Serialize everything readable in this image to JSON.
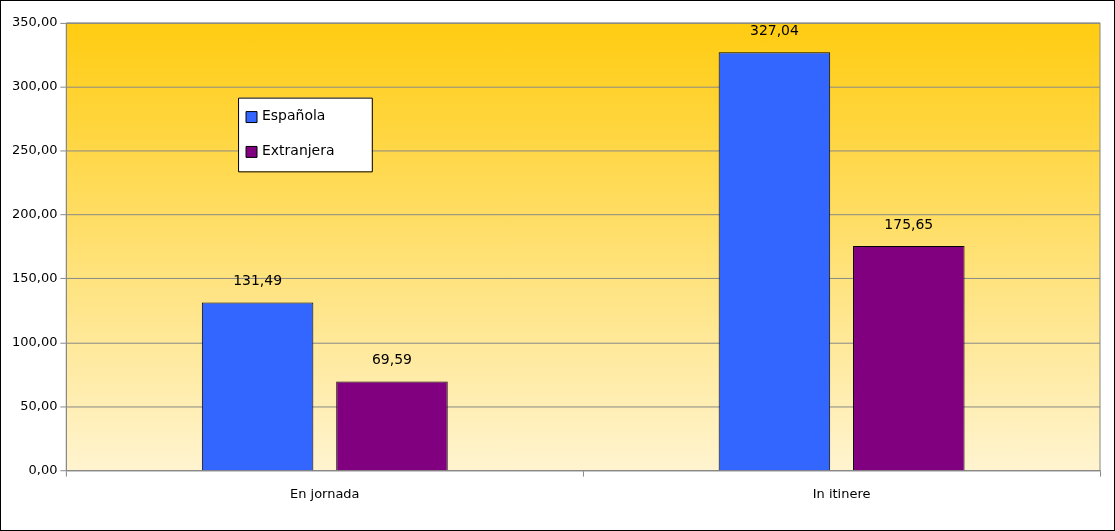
{
  "chart_data": {
    "type": "bar",
    "categories": [
      "En jornada",
      "In itinere"
    ],
    "series": [
      {
        "name": "Española",
        "color": "#3366ff",
        "values": [
          131.49,
          327.04
        ],
        "value_labels": [
          "131,49",
          "327,04"
        ]
      },
      {
        "name": "Extranjera",
        "color": "#800080",
        "values": [
          69.59,
          175.65
        ],
        "value_labels": [
          "69,59",
          "175,65"
        ]
      }
    ],
    "ylim": [
      0,
      350
    ],
    "yticks": [
      {
        "value": 0,
        "label": "0,00"
      },
      {
        "value": 50,
        "label": "50,00"
      },
      {
        "value": 100,
        "label": "100,00"
      },
      {
        "value": 150,
        "label": "150,00"
      },
      {
        "value": 200,
        "label": "200,00"
      },
      {
        "value": 250,
        "label": "250,00"
      },
      {
        "value": 300,
        "label": "300,00"
      },
      {
        "value": 350,
        "label": "350,00"
      }
    ],
    "grid": "y",
    "legend": "top left"
  }
}
